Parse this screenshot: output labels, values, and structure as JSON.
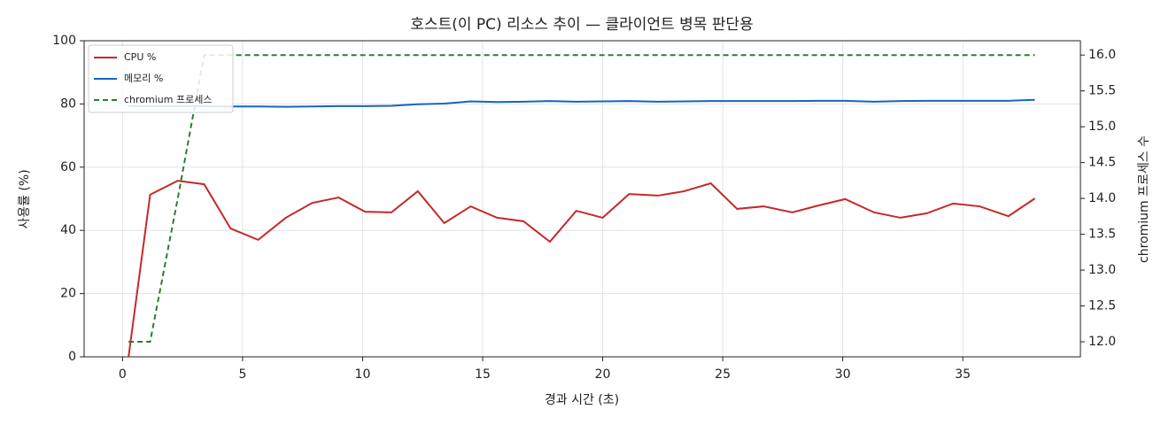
{
  "chart_data": {
    "type": "line",
    "title": "호스트(이 PC) 리소스 추이 — 클라이언트 병목 판단용",
    "xlabel": "경과 시간 (초)",
    "ylabel": "사용률 (%)",
    "y2label": "chromium 프로세스 수",
    "x": [
      0.25,
      1.15,
      2.3,
      3.4,
      4.5,
      5.65,
      6.8,
      7.9,
      9.0,
      10.1,
      11.2,
      12.3,
      13.4,
      14.5,
      15.6,
      16.7,
      17.8,
      18.9,
      20.0,
      21.1,
      22.3,
      23.4,
      24.5,
      25.6,
      26.7,
      27.9,
      29.0,
      30.1,
      31.3,
      32.4,
      33.5,
      34.6,
      35.7,
      36.9,
      38.0
    ],
    "series": [
      {
        "name": "CPU %",
        "color": "#c62828",
        "linestyle": "solid",
        "values": [
          0,
          51.3,
          55.7,
          54.6,
          40.6,
          37.0,
          44.0,
          48.7,
          50.4,
          45.9,
          45.7,
          52.4,
          42.3,
          47.6,
          44.0,
          42.9,
          36.4,
          46.2,
          44.0,
          51.5,
          51.0,
          52.4,
          54.9,
          46.8,
          47.6,
          45.7,
          47.9,
          49.9,
          45.7,
          44.0,
          45.4,
          48.5,
          47.6,
          44.5,
          50.1
        ]
      },
      {
        "name": "메모리 %",
        "color": "#1565c0",
        "linestyle": "solid",
        "values": [
          79.3,
          79.3,
          79.3,
          79.3,
          79.2,
          79.2,
          79.1,
          79.2,
          79.3,
          79.3,
          79.4,
          79.9,
          80.1,
          80.8,
          80.6,
          80.7,
          80.9,
          80.7,
          80.8,
          80.9,
          80.7,
          80.8,
          80.9,
          80.9,
          80.9,
          80.9,
          81.0,
          81.0,
          80.7,
          80.9,
          81.0,
          81.0,
          81.0,
          81.0,
          81.3
        ]
      },
      {
        "name": "chromium 프로세스",
        "color": "#2e7d32",
        "linestyle": "dashed",
        "axis": "y2",
        "values": [
          12,
          12,
          14,
          16,
          16,
          16,
          16,
          16,
          16,
          16,
          16,
          16,
          16,
          16,
          16,
          16,
          16,
          16,
          16,
          16,
          16,
          16,
          16,
          16,
          16,
          16,
          16,
          16,
          16,
          16,
          16,
          16,
          16,
          16,
          16
        ]
      }
    ],
    "xlim": [
      -1.6,
      39.9
    ],
    "xticks": [
      0,
      5,
      10,
      15,
      20,
      25,
      30,
      35
    ],
    "ylim": [
      0,
      100
    ],
    "yticks": [
      0,
      20,
      40,
      60,
      80,
      100
    ],
    "y2lim": [
      11.79,
      16.2
    ],
    "y2ticks": [
      {
        "value": 12,
        "label": "12.0"
      },
      {
        "value": 12.5,
        "label": "12.5"
      },
      {
        "value": 13,
        "label": "13.0"
      },
      {
        "value": 13.5,
        "label": "13.5"
      },
      {
        "value": 14,
        "label": "14.0"
      },
      {
        "value": 14.5,
        "label": "14.5"
      },
      {
        "value": 15,
        "label": "15.0"
      },
      {
        "value": 15.5,
        "label": "15.5"
      },
      {
        "value": 16,
        "label": "16.0"
      }
    ],
    "grid": true,
    "legend": "upper-left"
  }
}
